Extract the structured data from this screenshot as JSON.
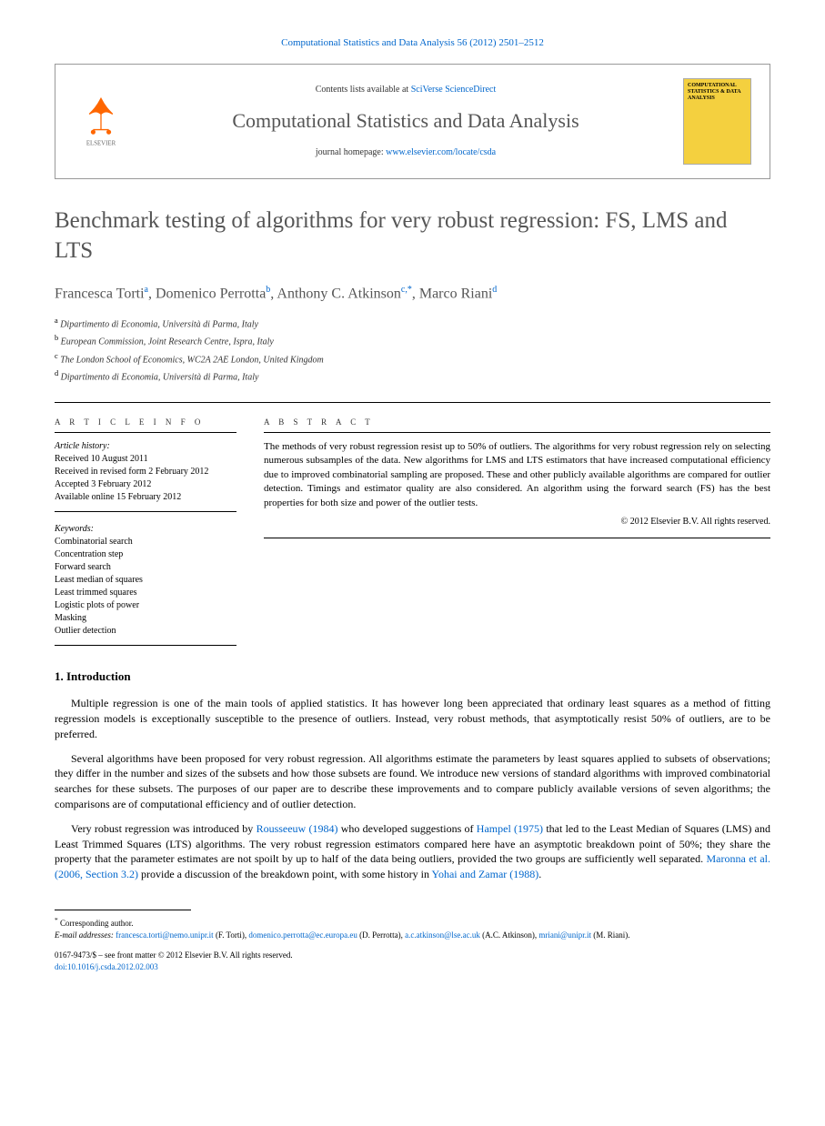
{
  "journal_ref": "Computational Statistics and Data Analysis 56 (2012) 2501–2512",
  "contents_box": {
    "available_text": "Contents lists available at ",
    "available_link": "SciVerse ScienceDirect",
    "journal_name": "Computational Statistics and Data Analysis",
    "homepage_label": "journal homepage: ",
    "homepage_url": "www.elsevier.com/locate/csda",
    "elsevier_label": "ELSEVIER",
    "cover_text": "COMPUTATIONAL STATISTICS & DATA ANALYSIS"
  },
  "article_title": "Benchmark testing of algorithms for very robust regression: FS, LMS and LTS",
  "authors": [
    {
      "name": "Francesca Torti",
      "affil": "a",
      "corresponding": false
    },
    {
      "name": "Domenico Perrotta",
      "affil": "b",
      "corresponding": false
    },
    {
      "name": "Anthony C. Atkinson",
      "affil": "c,*",
      "corresponding": true
    },
    {
      "name": "Marco Riani",
      "affil": "d",
      "corresponding": false
    }
  ],
  "affiliations": [
    {
      "sup": "a",
      "text": "Dipartimento di Economia, Università di Parma, Italy"
    },
    {
      "sup": "b",
      "text": "European Commission, Joint Research Centre, Ispra, Italy"
    },
    {
      "sup": "c",
      "text": "The London School of Economics, WC2A 2AE London, United Kingdom"
    },
    {
      "sup": "d",
      "text": "Dipartimento di Economia, Università di Parma, Italy"
    }
  ],
  "article_info": {
    "heading": "A R T I C L E   I N F O",
    "history_label": "Article history:",
    "history": [
      "Received 10 August 2011",
      "Received in revised form 2 February 2012",
      "Accepted 3 February 2012",
      "Available online 15 February 2012"
    ],
    "keywords_label": "Keywords:",
    "keywords": [
      "Combinatorial search",
      "Concentration step",
      "Forward search",
      "Least median of squares",
      "Least trimmed squares",
      "Logistic plots of power",
      "Masking",
      "Outlier detection"
    ]
  },
  "abstract": {
    "heading": "A B S T R A C T",
    "text": "The methods of very robust regression resist up to 50% of outliers. The algorithms for very robust regression rely on selecting numerous subsamples of the data. New algorithms for LMS and LTS estimators that have increased computational efficiency due to improved combinatorial sampling are proposed. These and other publicly available algorithms are compared for outlier detection. Timings and estimator quality are also considered. An algorithm using the forward search (FS) has the best properties for both size and power of the outlier tests.",
    "copyright": "© 2012 Elsevier B.V. All rights reserved."
  },
  "sections": {
    "intro_heading": "1. Introduction",
    "intro_paras": [
      "Multiple regression is one of the main tools of applied statistics. It has however long been appreciated that ordinary least squares as a method of fitting regression models is exceptionally susceptible to the presence of outliers. Instead, very robust methods, that asymptotically resist 50% of outliers, are to be preferred.",
      "Several algorithms have been proposed for very robust regression. All algorithms estimate the parameters by least squares applied to subsets of observations; they differ in the number and sizes of the subsets and how those subsets are found. We introduce new versions of standard algorithms with improved combinatorial searches for these subsets. The purposes of our paper are to describe these improvements and to compare publicly available versions of seven algorithms; the comparisons are of computational efficiency and of outlier detection.",
      "Very robust regression was introduced by <ref>Rousseeuw (1984)</ref> who developed suggestions of <ref>Hampel (1975)</ref> that led to the Least Median of Squares (LMS) and Least Trimmed Squares (LTS) algorithms. The very robust regression estimators compared here have an asymptotic breakdown point of 50%; they share the property that the parameter estimates are not spoilt by up to half of the data being outliers, provided the two groups are sufficiently well separated. <ref>Maronna et al. (2006, Section 3.2)</ref> provide a discussion of the breakdown point, with some history in <ref>Yohai and Zamar (1988)</ref>."
    ]
  },
  "footnotes": {
    "corresponding": "Corresponding author.",
    "email_label": "E-mail addresses: ",
    "emails": [
      {
        "email": "francesca.torti@nemo.unipr.it",
        "name": "(F. Torti)"
      },
      {
        "email": "domenico.perrotta@ec.europa.eu",
        "name": "(D. Perrotta)"
      },
      {
        "email": "a.c.atkinson@lse.ac.uk",
        "name": "(A.C. Atkinson)"
      },
      {
        "email": "mriani@unipr.it",
        "name": "(M. Riani)"
      }
    ]
  },
  "footer": {
    "issn": "0167-9473/$ – see front matter © 2012 Elsevier B.V. All rights reserved.",
    "doi": "doi:10.1016/j.csda.2012.02.003"
  }
}
